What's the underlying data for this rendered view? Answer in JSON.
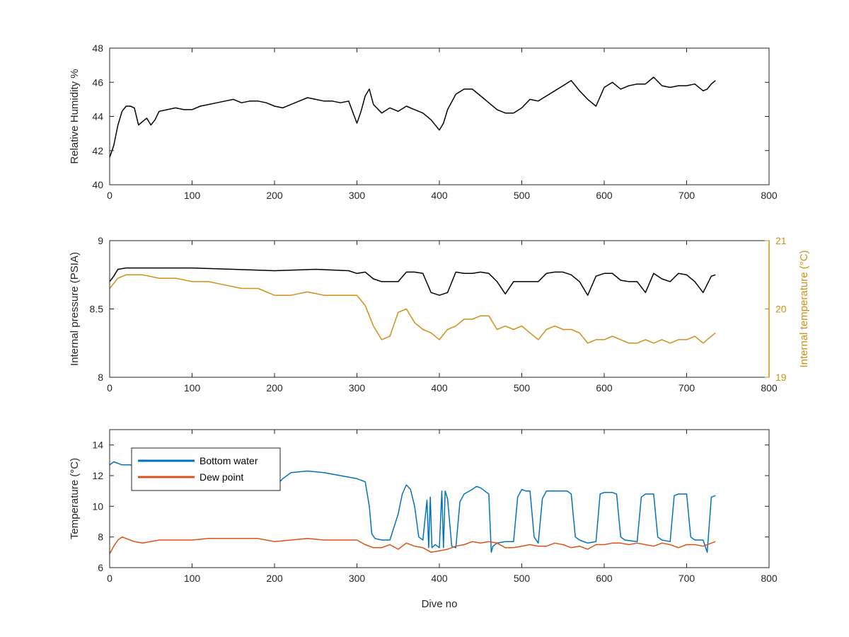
{
  "figure": {
    "xlabel": "Dive no"
  },
  "chart_data": [
    {
      "type": "line",
      "xlabel": "",
      "ylabel": "Relative Humidity %",
      "xlim": [
        0,
        800
      ],
      "ylim": [
        40,
        48
      ],
      "xticks": [
        0,
        100,
        200,
        300,
        400,
        500,
        600,
        700,
        800
      ],
      "yticks": [
        40,
        42,
        44,
        46,
        48
      ],
      "grid": false,
      "series": [
        {
          "name": "",
          "color": "#000000",
          "x": [
            0,
            5,
            10,
            15,
            20,
            25,
            30,
            35,
            40,
            45,
            50,
            55,
            60,
            70,
            80,
            90,
            100,
            110,
            120,
            130,
            140,
            150,
            160,
            170,
            180,
            190,
            200,
            210,
            220,
            230,
            240,
            250,
            260,
            270,
            280,
            290,
            300,
            305,
            310,
            315,
            320,
            330,
            340,
            350,
            360,
            370,
            380,
            390,
            400,
            405,
            410,
            420,
            430,
            440,
            450,
            460,
            470,
            480,
            490,
            500,
            510,
            520,
            530,
            540,
            550,
            560,
            570,
            580,
            590,
            600,
            610,
            620,
            630,
            640,
            650,
            660,
            670,
            680,
            690,
            700,
            710,
            720,
            725,
            730,
            735
          ],
          "y": [
            41.6,
            42.3,
            43.5,
            44.3,
            44.6,
            44.6,
            44.5,
            43.5,
            43.7,
            43.9,
            43.5,
            43.8,
            44.3,
            44.4,
            44.5,
            44.4,
            44.4,
            44.6,
            44.7,
            44.8,
            44.9,
            45.0,
            44.8,
            44.9,
            44.9,
            44.8,
            44.6,
            44.5,
            44.7,
            44.9,
            45.1,
            45.0,
            44.9,
            44.9,
            44.8,
            44.9,
            43.6,
            44.3,
            45.2,
            45.6,
            44.7,
            44.2,
            44.5,
            44.3,
            44.6,
            44.4,
            44.2,
            43.8,
            43.2,
            43.6,
            44.4,
            45.3,
            45.6,
            45.6,
            45.2,
            44.8,
            44.4,
            44.2,
            44.2,
            44.5,
            45.0,
            44.9,
            45.2,
            45.5,
            45.8,
            46.1,
            45.5,
            45.0,
            44.6,
            45.7,
            46.0,
            45.6,
            45.8,
            45.9,
            45.9,
            46.3,
            45.8,
            45.7,
            45.8,
            45.8,
            45.9,
            45.5,
            45.6,
            45.9,
            46.1
          ]
        }
      ]
    },
    {
      "type": "line",
      "xlabel": "",
      "ylabel": "Internal pressure (PSIA)",
      "ylabel_right": "Internal temperature (°C)",
      "xlim": [
        0,
        800
      ],
      "ylim": [
        8,
        9
      ],
      "ylim_right": [
        19,
        21
      ],
      "xticks": [
        0,
        100,
        200,
        300,
        400,
        500,
        600,
        700,
        800
      ],
      "yticks": [
        8,
        8.5,
        9
      ],
      "yticks_right": [
        19,
        20,
        21
      ],
      "grid": false,
      "series": [
        {
          "name": "",
          "axis": "left",
          "color": "#000000",
          "x": [
            0,
            5,
            10,
            20,
            40,
            60,
            100,
            150,
            200,
            250,
            290,
            300,
            310,
            320,
            330,
            340,
            350,
            360,
            370,
            380,
            390,
            400,
            410,
            420,
            430,
            440,
            450,
            460,
            470,
            480,
            490,
            500,
            510,
            520,
            530,
            540,
            550,
            560,
            570,
            580,
            590,
            600,
            610,
            620,
            630,
            640,
            650,
            660,
            670,
            680,
            690,
            700,
            710,
            720,
            730,
            735
          ],
          "y": [
            8.7,
            8.74,
            8.79,
            8.8,
            8.8,
            8.8,
            8.8,
            8.79,
            8.78,
            8.79,
            8.78,
            8.76,
            8.77,
            8.72,
            8.7,
            8.7,
            8.7,
            8.77,
            8.77,
            8.76,
            8.62,
            8.6,
            8.62,
            8.77,
            8.76,
            8.76,
            8.77,
            8.76,
            8.7,
            8.61,
            8.7,
            8.7,
            8.7,
            8.7,
            8.76,
            8.77,
            8.77,
            8.75,
            8.7,
            8.6,
            8.74,
            8.76,
            8.76,
            8.71,
            8.7,
            8.7,
            8.62,
            8.76,
            8.72,
            8.7,
            8.76,
            8.75,
            8.7,
            8.62,
            8.74,
            8.75
          ]
        },
        {
          "name": "",
          "axis": "right",
          "color": "#d08f16",
          "x": [
            0,
            10,
            20,
            40,
            60,
            80,
            100,
            120,
            140,
            160,
            180,
            200,
            220,
            240,
            260,
            280,
            300,
            310,
            320,
            330,
            340,
            350,
            360,
            370,
            380,
            390,
            400,
            410,
            420,
            430,
            440,
            450,
            460,
            470,
            480,
            490,
            500,
            510,
            520,
            530,
            540,
            550,
            560,
            570,
            580,
            590,
            600,
            610,
            620,
            630,
            640,
            650,
            660,
            670,
            680,
            690,
            700,
            710,
            720,
            730,
            735
          ],
          "y": [
            20.3,
            20.45,
            20.5,
            20.5,
            20.45,
            20.45,
            20.4,
            20.4,
            20.35,
            20.3,
            20.3,
            20.2,
            20.2,
            20.25,
            20.2,
            20.2,
            20.2,
            20.05,
            19.75,
            19.55,
            19.6,
            19.95,
            20.0,
            19.8,
            19.7,
            19.65,
            19.55,
            19.7,
            19.75,
            19.85,
            19.85,
            19.9,
            19.9,
            19.7,
            19.75,
            19.7,
            19.75,
            19.65,
            19.55,
            19.7,
            19.75,
            19.7,
            19.7,
            19.65,
            19.5,
            19.55,
            19.55,
            19.6,
            19.55,
            19.5,
            19.5,
            19.55,
            19.5,
            19.55,
            19.5,
            19.55,
            19.55,
            19.6,
            19.5,
            19.6,
            19.65
          ]
        }
      ]
    },
    {
      "type": "line",
      "xlabel": "Dive no",
      "ylabel": "Temperature (°C)",
      "xlim": [
        0,
        800
      ],
      "ylim": [
        6,
        15
      ],
      "xticks": [
        0,
        100,
        200,
        300,
        400,
        500,
        600,
        700,
        800
      ],
      "yticks": [
        6,
        8,
        10,
        12,
        14
      ],
      "grid": false,
      "legend": "top-left",
      "series": [
        {
          "name": "Bottom water",
          "color": "#0072bd",
          "x": [
            0,
            5,
            10,
            15,
            20,
            25,
            30,
            60,
            100,
            150,
            200,
            205,
            210,
            215,
            220,
            240,
            260,
            280,
            300,
            305,
            310,
            315,
            318,
            322,
            330,
            340,
            350,
            355,
            360,
            365,
            370,
            375,
            380,
            385,
            387,
            389,
            391,
            395,
            400,
            403,
            405,
            407,
            410,
            415,
            420,
            425,
            430,
            440,
            445,
            450,
            455,
            460,
            463,
            465,
            470,
            480,
            490,
            495,
            500,
            505,
            510,
            515,
            520,
            525,
            530,
            540,
            555,
            560,
            565,
            570,
            580,
            590,
            595,
            600,
            610,
            615,
            620,
            625,
            640,
            645,
            650,
            660,
            665,
            670,
            680,
            685,
            690,
            700,
            705,
            710,
            720,
            725,
            730,
            735
          ],
          "y": [
            12.7,
            12.9,
            12.8,
            12.7,
            12.7,
            12.7,
            12.6,
            12.6,
            12.5,
            12.4,
            12.2,
            11.5,
            11.8,
            12.0,
            12.2,
            12.3,
            12.2,
            12.0,
            11.8,
            11.7,
            11.6,
            10.0,
            8.2,
            7.9,
            7.8,
            7.8,
            9.5,
            10.8,
            11.4,
            11.1,
            10.0,
            8.0,
            7.8,
            10.4,
            7.3,
            10.6,
            7.3,
            7.5,
            7.3,
            11.0,
            7.3,
            11.0,
            10.5,
            7.4,
            7.3,
            10.3,
            10.8,
            11.1,
            11.3,
            11.2,
            11.0,
            10.8,
            7.0,
            7.4,
            7.6,
            7.7,
            7.7,
            10.6,
            11.1,
            11.0,
            11.0,
            8.0,
            7.6,
            10.5,
            11.0,
            11.0,
            11.0,
            10.8,
            8.0,
            7.8,
            7.6,
            7.7,
            10.8,
            10.9,
            10.9,
            10.8,
            8.0,
            7.8,
            7.7,
            10.6,
            10.8,
            10.8,
            8.0,
            7.8,
            7.7,
            10.7,
            10.8,
            10.8,
            8.0,
            7.8,
            7.8,
            7.0,
            10.6,
            10.7
          ]
        },
        {
          "name": "Dew point",
          "color": "#d95319",
          "x": [
            0,
            5,
            10,
            15,
            20,
            30,
            40,
            60,
            80,
            100,
            120,
            140,
            160,
            180,
            200,
            220,
            240,
            260,
            280,
            300,
            310,
            320,
            330,
            340,
            350,
            360,
            370,
            380,
            390,
            400,
            410,
            420,
            430,
            440,
            450,
            460,
            470,
            480,
            490,
            500,
            510,
            520,
            530,
            540,
            550,
            560,
            570,
            580,
            590,
            600,
            610,
            620,
            630,
            640,
            650,
            660,
            670,
            680,
            690,
            700,
            710,
            720,
            730,
            735
          ],
          "y": [
            6.9,
            7.4,
            7.8,
            8.0,
            7.9,
            7.7,
            7.6,
            7.8,
            7.8,
            7.8,
            7.9,
            7.9,
            7.9,
            7.9,
            7.7,
            7.8,
            7.9,
            7.8,
            7.8,
            7.8,
            7.5,
            7.3,
            7.3,
            7.5,
            7.2,
            7.6,
            7.4,
            7.3,
            7.0,
            7.1,
            7.2,
            7.4,
            7.5,
            7.7,
            7.6,
            7.7,
            7.6,
            7.3,
            7.3,
            7.4,
            7.5,
            7.4,
            7.4,
            7.6,
            7.5,
            7.3,
            7.4,
            7.2,
            7.5,
            7.5,
            7.6,
            7.6,
            7.5,
            7.6,
            7.5,
            7.4,
            7.6,
            7.5,
            7.3,
            7.5,
            7.5,
            7.4,
            7.6,
            7.7
          ]
        }
      ]
    }
  ]
}
